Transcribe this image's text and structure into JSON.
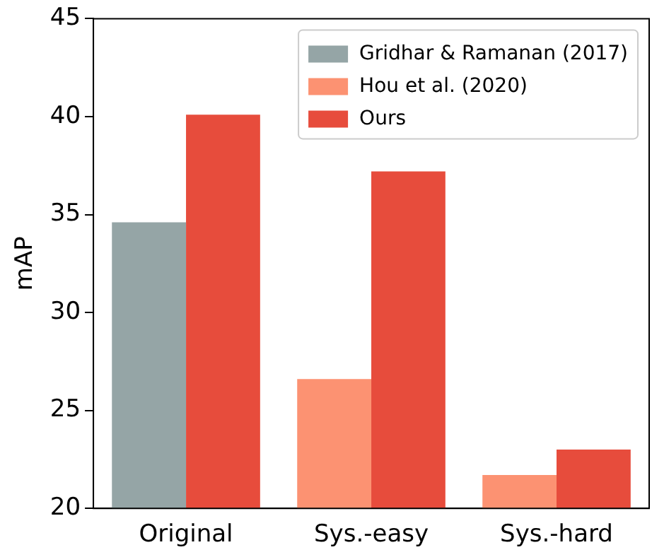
{
  "chart_data": {
    "type": "bar",
    "ylabel": "mAP",
    "categories": [
      "Original",
      "Sys.-easy",
      "Sys.-hard"
    ],
    "series": [
      {
        "name": "Gridhar & Ramanan (2017)",
        "color": "#95a5a6",
        "values": [
          34.6,
          null,
          null
        ]
      },
      {
        "name": "Hou et al. (2020)",
        "color": "#fc9272",
        "values": [
          null,
          26.6,
          21.7
        ]
      },
      {
        "name": "Ours",
        "color": "#e74c3c",
        "values": [
          40.1,
          37.2,
          23.0
        ]
      }
    ],
    "ylim": [
      20,
      45
    ],
    "yticks": [
      20,
      25,
      30,
      35,
      40,
      45
    ],
    "grid": false,
    "legend": "top right"
  }
}
